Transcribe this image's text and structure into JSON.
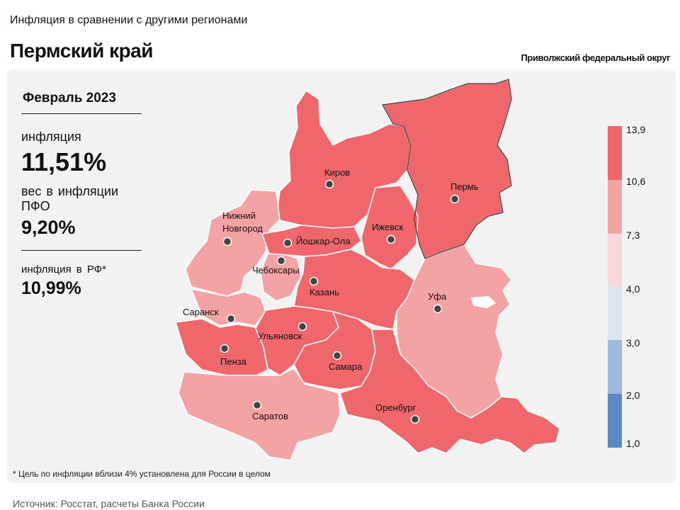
{
  "header": {
    "subtitle": "Инфляция в сравнении с другими регионами",
    "title": "Пермский край",
    "district": "Приволжский федеральный округ"
  },
  "stats": {
    "period": "Февраль 2023",
    "inflation_label": "инфляция",
    "inflation_value": "11,51%",
    "weight_label": "вес в инфляции ПФО",
    "weight_value": "9,20%",
    "rf_label": "инфляция в РФ*",
    "rf_value": "10,99%"
  },
  "footnote": "* Цель по инфляции вблизи 4% установлена для России в целом",
  "source": "Источник: Росстат, расчеты Банка России",
  "legend": {
    "ticks": [
      "13,9",
      "10,6",
      "7,3",
      "4,0",
      "3,0",
      "2,0",
      "1,0"
    ],
    "colors": [
      "#f0676b",
      "#f4a3a4",
      "#f8d8d9",
      "#dde5f3",
      "#9eb9dd",
      "#5d88c4"
    ]
  },
  "colors": {
    "high": "#f0676b",
    "mid": "#f4a3a4",
    "panel": "#f2f2f2"
  },
  "cities": [
    {
      "name": "Киров"
    },
    {
      "name": "Пермь"
    },
    {
      "name": "Нижний"
    },
    {
      "name": "Новгород"
    },
    {
      "name": "Ижевск"
    },
    {
      "name": "Йошкар-Ола"
    },
    {
      "name": "Чебоксары"
    },
    {
      "name": "Казань"
    },
    {
      "name": "Уфа"
    },
    {
      "name": "Саранск"
    },
    {
      "name": "Ульяновск"
    },
    {
      "name": "Пенза"
    },
    {
      "name": "Самара"
    },
    {
      "name": "Саратов"
    },
    {
      "name": "Оренбург"
    }
  ]
}
